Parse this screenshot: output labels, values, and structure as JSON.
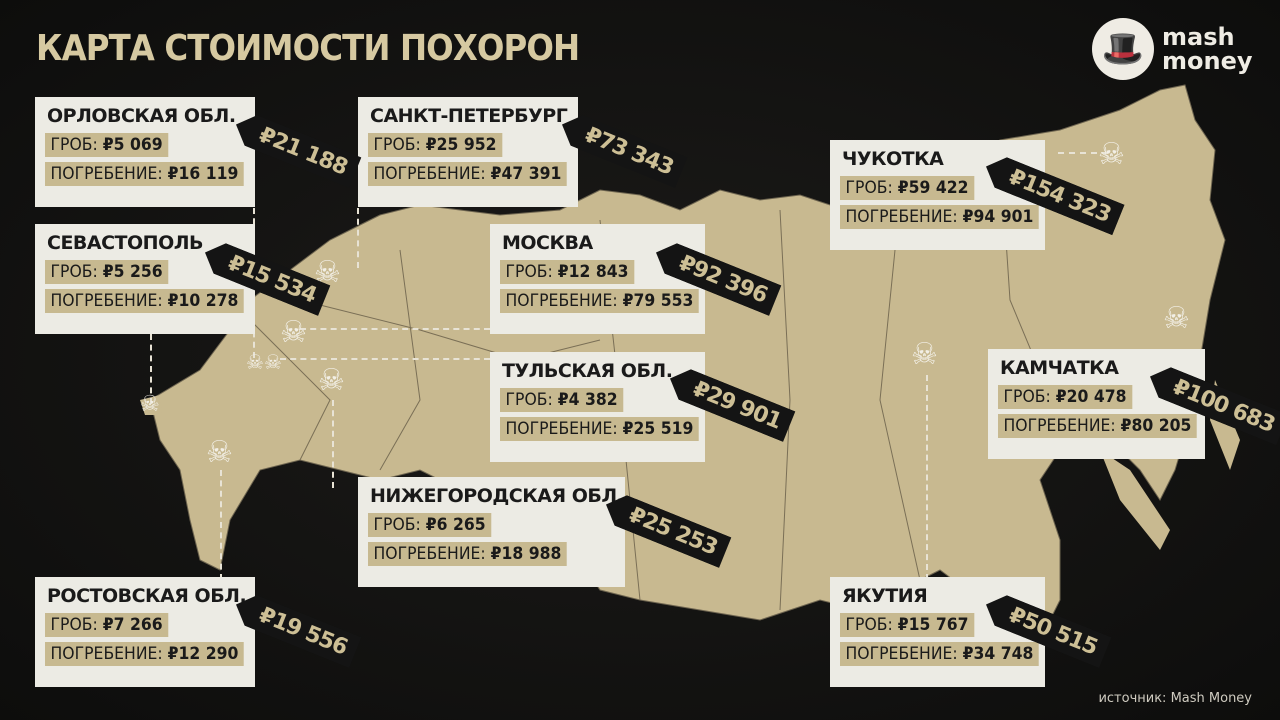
{
  "title": "КАРТА СТОИМОСТИ ПОХОРОН",
  "logo": {
    "line1": "mash",
    "line2": "money",
    "icon": "top-hat-mascot-icon"
  },
  "labels": {
    "coffin": "ГРОБ:",
    "burial": "ПОГРЕБЕНИЕ:"
  },
  "colors": {
    "background": "#111110",
    "map": "#c8b990",
    "card": "#ecebe4",
    "highlight": "#c7b990",
    "tag": "#141414"
  },
  "regions": [
    {
      "name": "ОРЛОВСКАЯ ОБЛ.",
      "coffin": "₽5 069",
      "burial": "₽16 119",
      "total": "₽21 188"
    },
    {
      "name": "САНКТ-ПЕТЕРБУРГ",
      "coffin": "₽25 952",
      "burial": "₽47 391",
      "total": "₽73 343"
    },
    {
      "name": "СЕВАСТОПОЛЬ",
      "coffin": "₽5 256",
      "burial": "₽10 278",
      "total": "₽15 534"
    },
    {
      "name": "МОСКВА",
      "coffin": "₽12 843",
      "burial": "₽79 553",
      "total": "₽92 396"
    },
    {
      "name": "ТУЛЬСКАЯ ОБЛ.",
      "coffin": "₽4 382",
      "burial": "₽25 519",
      "total": "₽29 901"
    },
    {
      "name": "НИЖЕГОРОДСКАЯ ОБЛ.",
      "coffin": "₽6 265",
      "burial": "₽18 988",
      "total": "₽25 253"
    },
    {
      "name": "РОСТОВСКАЯ ОБЛ.",
      "coffin": "₽7 266",
      "burial": "₽12 290",
      "total": "₽19 556"
    },
    {
      "name": "ЧУКОТКА",
      "coffin": "₽59 422",
      "burial": "₽94 901",
      "total": "₽154 323"
    },
    {
      "name": "КАМЧАТКА",
      "coffin": "₽20 478",
      "burial": "₽80 205",
      "total": "₽100 683"
    },
    {
      "name": "ЯКУТИЯ",
      "coffin": "₽15 767",
      "burial": "₽34 748",
      "total": "₽50 515"
    }
  ],
  "source": "источник: Mash Money"
}
